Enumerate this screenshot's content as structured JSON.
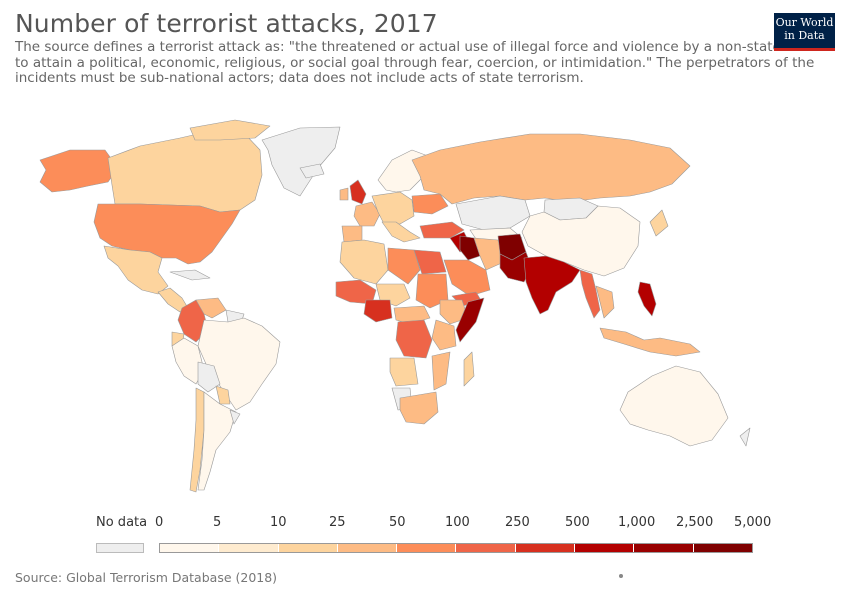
{
  "title": "Number of terrorist attacks, 2017",
  "subtitle": "The source defines a terrorist attack as: \"the threatened or actual use of illegal force and violence by a non-state actor to attain a political, economic, religious, or social goal through fear, coercion, or intimidation.\" The perpetrators of the incidents must be sub-national actors; data does not include acts of state terrorism.",
  "logo": "Our World in Data",
  "legend": {
    "no_data_label": "No data",
    "no_data_color": "#eeeeee",
    "breaks": [
      "0",
      "5",
      "10",
      "25",
      "50",
      "100",
      "250",
      "500",
      "1,000",
      "2,500",
      "5,000"
    ],
    "colors": [
      "#fff7ec",
      "#feebcf",
      "#fdd49e",
      "#fdbb84",
      "#fc8d59",
      "#ef6548",
      "#d7301f",
      "#b30000",
      "#990000",
      "#7f0000"
    ]
  },
  "source": "Source: Global Terrorism Database (2018)"
}
